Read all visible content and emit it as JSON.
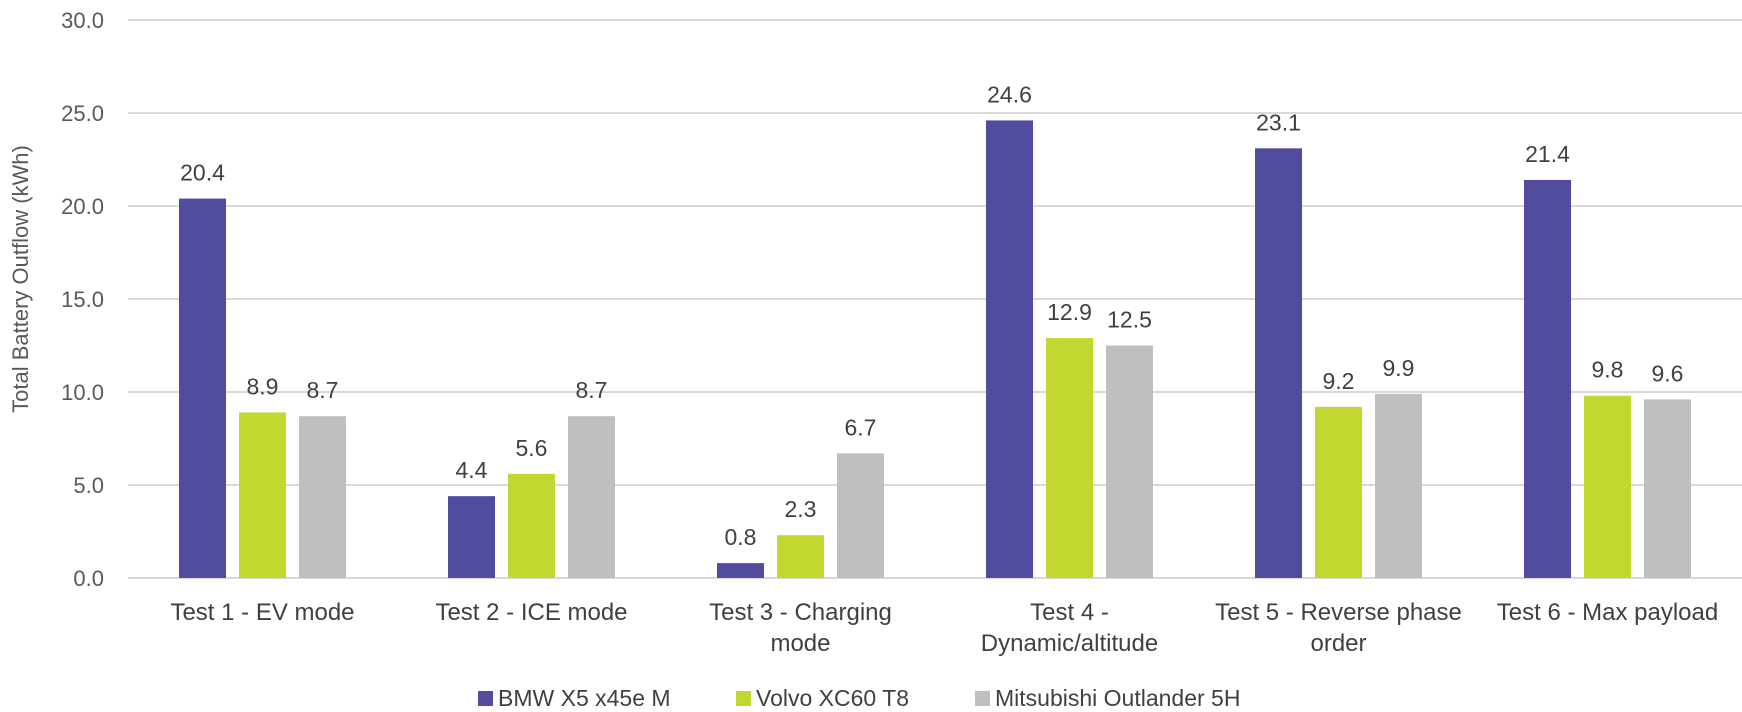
{
  "chart_data": {
    "type": "bar",
    "ylabel": "Total Battery Outflow (kWh)",
    "ylim": [
      0,
      30
    ],
    "yticks": [
      "0.0",
      "5.0",
      "10.0",
      "15.0",
      "20.0",
      "25.0",
      "30.0"
    ],
    "grid": true,
    "legend_position": "bottom",
    "categories": [
      [
        "Test 1 - EV mode"
      ],
      [
        "Test 2 - ICE mode"
      ],
      [
        "Test 3 - Charging",
        "mode"
      ],
      [
        "Test 4 -",
        "Dynamic/altitude"
      ],
      [
        "Test 5 - Reverse phase",
        "order"
      ],
      [
        "Test 6 - Max payload"
      ]
    ],
    "series": [
      {
        "name": "BMW X5 x45e M",
        "color": "#514C9E",
        "values": [
          20.4,
          4.4,
          0.8,
          24.6,
          23.1,
          21.4
        ],
        "labels": [
          "20.4",
          "4.4",
          "0.8",
          "24.6",
          "23.1",
          "21.4"
        ]
      },
      {
        "name": "Volvo XC60 T8",
        "color": "#C2D831",
        "values": [
          8.9,
          5.6,
          2.3,
          12.9,
          9.2,
          9.8
        ],
        "labels": [
          "8.9",
          "5.6",
          "2.3",
          "12.9",
          "9.2",
          "9.8"
        ]
      },
      {
        "name": "Mitsubishi Outlander 5H",
        "color": "#BFBFBF",
        "values": [
          8.7,
          8.7,
          6.7,
          12.5,
          9.9,
          9.6
        ],
        "labels": [
          "8.7",
          "8.7",
          "6.7",
          "12.5",
          "9.9",
          "9.6"
        ]
      }
    ]
  }
}
